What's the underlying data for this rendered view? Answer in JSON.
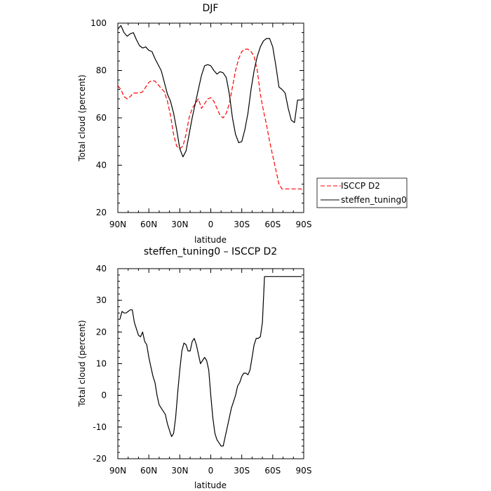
{
  "chart_data": [
    {
      "type": "line",
      "title": "DJF",
      "xlabel": "latitude",
      "ylabel": "Total cloud (percent)",
      "xlim": [
        90,
        -90
      ],
      "ylim": [
        20,
        100
      ],
      "x_ticks": [
        90,
        60,
        30,
        0,
        -30,
        -60,
        -90
      ],
      "x_tick_labels": [
        "90N",
        "60N",
        "30N",
        "0",
        "30S",
        "60S",
        "90S"
      ],
      "y_ticks": [
        20,
        40,
        60,
        80,
        100
      ],
      "grid": false,
      "legend_position": "right",
      "series": [
        {
          "name": "ISCCP D2",
          "color": "#ff0000",
          "dash": "dashed",
          "x": [
            90,
            87,
            84,
            81,
            78,
            75,
            72,
            69,
            66,
            63,
            60,
            57,
            54,
            51,
            48,
            45,
            42,
            39,
            36,
            33,
            30,
            27,
            24,
            21,
            18,
            15,
            12,
            9,
            6,
            3,
            0,
            -3,
            -6,
            -9,
            -12,
            -15,
            -18,
            -21,
            -24,
            -27,
            -30,
            -33,
            -36,
            -39,
            -42,
            -45,
            -48,
            -51,
            -54,
            -57,
            -60,
            -63,
            -66,
            -69,
            -72,
            -75,
            -78,
            -81,
            -84,
            -87,
            -89
          ],
          "y": [
            73.5,
            72,
            69,
            68,
            69,
            70.5,
            70.5,
            70.5,
            71,
            73,
            75,
            75.8,
            75.5,
            74,
            72.5,
            71,
            67,
            61,
            53,
            48,
            47,
            48,
            53,
            60,
            64,
            66,
            68,
            64,
            66,
            68,
            68.5,
            67,
            64,
            61,
            60,
            62,
            66,
            73,
            80,
            85,
            88,
            89,
            89,
            88,
            86,
            80,
            70,
            63,
            57,
            50,
            44,
            38,
            32,
            30,
            30,
            30,
            30,
            30,
            30,
            30,
            29.5
          ]
        },
        {
          "name": "steffen_tuning0",
          "color": "#000000",
          "dash": "solid",
          "x": [
            90,
            87,
            84,
            81,
            78,
            75,
            72,
            69,
            66,
            63,
            60,
            57,
            54,
            51,
            48,
            45,
            42,
            39,
            36,
            33,
            30,
            27,
            24,
            21,
            18,
            15,
            12,
            9,
            6,
            3,
            0,
            -3,
            -6,
            -9,
            -12,
            -15,
            -18,
            -21,
            -24,
            -27,
            -30,
            -33,
            -36,
            -39,
            -42,
            -45,
            -48,
            -51,
            -54,
            -57,
            -60,
            -63,
            -66,
            -69,
            -72,
            -75,
            -78,
            -81,
            -84,
            -87,
            -89
          ],
          "y": [
            97.5,
            99,
            96,
            94.5,
            95.5,
            96,
            93,
            90.5,
            89.5,
            90,
            88.5,
            88,
            85,
            82.5,
            80,
            75,
            70,
            67,
            62,
            55,
            47,
            43.5,
            46,
            53,
            60,
            66,
            72,
            78,
            82,
            82.5,
            82,
            80,
            78.5,
            79.5,
            79,
            77,
            70,
            60,
            53,
            49.5,
            50,
            55,
            62,
            72,
            80,
            86,
            90,
            92.5,
            93.5,
            93.5,
            90,
            82,
            73,
            72,
            70.5,
            64,
            59,
            58,
            67.5,
            67.5,
            67.5
          ]
        }
      ]
    },
    {
      "type": "line",
      "title": "steffen_tuning0 – ISCCP D2",
      "xlabel": "latitude",
      "ylabel": "Total cloud (percent)",
      "xlim": [
        90,
        -90
      ],
      "ylim": [
        -20,
        40
      ],
      "x_ticks": [
        90,
        60,
        30,
        0,
        -30,
        -60,
        -90
      ],
      "x_tick_labels": [
        "90N",
        "60N",
        "30N",
        "0",
        "30S",
        "60S",
        "90S"
      ],
      "y_ticks": [
        -20,
        -10,
        0,
        10,
        20,
        30,
        40
      ],
      "grid": false,
      "series": [
        {
          "name": "",
          "color": "#000000",
          "dash": "solid",
          "x": [
            88,
            86,
            84,
            82,
            80,
            78,
            76,
            74,
            72,
            70,
            68,
            66,
            64,
            62,
            60,
            58,
            56,
            54,
            52,
            50,
            48,
            46,
            44,
            42,
            40,
            38,
            36,
            34,
            32,
            30,
            28,
            26,
            24,
            22,
            20,
            18,
            16,
            14,
            12,
            10,
            8,
            6,
            4,
            2,
            0,
            -2,
            -4,
            -6,
            -8,
            -10,
            -12,
            -14,
            -16,
            -18,
            -20,
            -22,
            -24,
            -26,
            -28,
            -30,
            -32,
            -34,
            -36,
            -38,
            -40,
            -42,
            -44,
            -46,
            -48,
            -50,
            -52,
            -54,
            -56,
            -58,
            -60,
            -62,
            -64,
            -66,
            -68,
            -70,
            -72,
            -74,
            -76,
            -78,
            -80,
            -82,
            -84,
            -86,
            -88
          ],
          "y": [
            24,
            26.5,
            26,
            26,
            26.5,
            27,
            27,
            23,
            21,
            19,
            18.5,
            20,
            17,
            16,
            12,
            9,
            6,
            4,
            0,
            -3,
            -4,
            -5,
            -6,
            -9,
            -11,
            -13,
            -12,
            -7,
            1,
            8,
            14,
            16.5,
            16,
            14,
            14,
            17,
            18,
            16,
            13,
            10,
            11,
            12,
            11,
            8,
            0,
            -7,
            -12,
            -14,
            -15,
            -16,
            -16,
            -13,
            -10,
            -7,
            -4,
            -2,
            0,
            3,
            4,
            6,
            7,
            7,
            6.5,
            8,
            12,
            16,
            18,
            18,
            18.5,
            23,
            37.5,
            37.5,
            37.5,
            37.5,
            37.5,
            37.5,
            37.5,
            37.5,
            37.5,
            37.5,
            37.5,
            37.5,
            37.5,
            37.5,
            37.5,
            37.5,
            37.5,
            37.5,
            37.5
          ]
        }
      ]
    }
  ]
}
